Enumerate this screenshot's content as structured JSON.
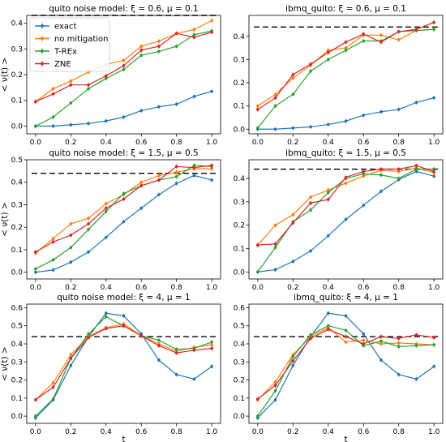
{
  "colors": {
    "exact": "#1f77b4",
    "no_mitigation": "#ff7f0e",
    "trex": "#2ca02c",
    "zne": "#d62728",
    "reference_line": "#000000",
    "axes": "#000000"
  },
  "chart_data": [
    {
      "type": "line",
      "title": "quito noise model: ξ = 0.6, μ = 0.1",
      "xlabel": "",
      "ylabel": "< ν(t) >",
      "xlim": [
        -0.05,
        1.05
      ],
      "ylim": [
        -0.03,
        0.43
      ],
      "xticks": [
        0.0,
        0.2,
        0.4,
        0.6,
        0.8,
        1.0
      ],
      "yticks": [
        0.0,
        0.1,
        0.2,
        0.3,
        0.4
      ],
      "reference_line": 0.43,
      "legend": {
        "position": "upper-left",
        "entries": [
          "exact",
          "no mitigation",
          "T-REx",
          "ZNE"
        ]
      },
      "x": [
        0.0,
        0.1,
        0.2,
        0.3,
        0.4,
        0.5,
        0.6,
        0.7,
        0.8,
        0.9,
        1.0
      ],
      "series": [
        {
          "name": "exact",
          "values": [
            0.0,
            0.0,
            0.005,
            0.01,
            0.02,
            0.035,
            0.06,
            0.075,
            0.085,
            0.115,
            0.135
          ]
        },
        {
          "name": "no mitigation",
          "values": [
            0.095,
            0.145,
            0.175,
            0.21,
            0.24,
            0.255,
            0.31,
            0.33,
            0.36,
            0.375,
            0.41
          ]
        },
        {
          "name": "T-REx",
          "values": [
            0.0,
            0.035,
            0.09,
            0.145,
            0.185,
            0.22,
            0.275,
            0.29,
            0.31,
            0.355,
            0.37
          ]
        },
        {
          "name": "ZNE",
          "values": [
            0.095,
            0.125,
            0.16,
            0.16,
            0.195,
            0.235,
            0.295,
            0.31,
            0.36,
            0.345,
            0.365
          ]
        }
      ]
    },
    {
      "type": "line",
      "title": "ibmq_quito: ξ = 0.6, μ = 0.1",
      "xlabel": "",
      "ylabel": "",
      "xlim": [
        -0.05,
        1.05
      ],
      "ylim": [
        -0.02,
        0.49
      ],
      "xticks": [
        0.0,
        0.2,
        0.4,
        0.6,
        0.8,
        1.0
      ],
      "yticks": [
        0.0,
        0.1,
        0.2,
        0.3,
        0.4
      ],
      "reference_line": 0.44,
      "x": [
        0.0,
        0.1,
        0.2,
        0.3,
        0.4,
        0.5,
        0.6,
        0.7,
        0.8,
        0.9,
        1.0
      ],
      "series": [
        {
          "name": "exact",
          "values": [
            0.0,
            0.0,
            0.005,
            0.01,
            0.02,
            0.035,
            0.06,
            0.075,
            0.085,
            0.115,
            0.135
          ]
        },
        {
          "name": "no mitigation",
          "values": [
            0.1,
            0.15,
            0.22,
            0.275,
            0.34,
            0.35,
            0.405,
            0.405,
            0.385,
            0.425,
            0.43
          ]
        },
        {
          "name": "T-REx",
          "values": [
            0.005,
            0.1,
            0.15,
            0.25,
            0.3,
            0.34,
            0.38,
            0.38,
            0.42,
            0.425,
            0.43
          ]
        },
        {
          "name": "ZNE",
          "values": [
            0.085,
            0.135,
            0.235,
            0.28,
            0.33,
            0.375,
            0.41,
            0.375,
            0.42,
            0.43,
            0.46
          ]
        }
      ]
    },
    {
      "type": "line",
      "title": "quito noise model: ξ = 1.5, μ = 0.5",
      "xlabel": "",
      "ylabel": "< ν(t) >",
      "xlim": [
        -0.05,
        1.05
      ],
      "ylim": [
        -0.03,
        0.5
      ],
      "xticks": [
        0.0,
        0.2,
        0.4,
        0.6,
        0.8,
        1.0
      ],
      "yticks": [
        0.0,
        0.1,
        0.2,
        0.3,
        0.4,
        0.5
      ],
      "reference_line": 0.44,
      "x": [
        0.0,
        0.1,
        0.2,
        0.3,
        0.4,
        0.5,
        0.6,
        0.7,
        0.8,
        0.9,
        1.0
      ],
      "series": [
        {
          "name": "exact",
          "values": [
            0.0,
            0.01,
            0.045,
            0.09,
            0.155,
            0.225,
            0.285,
            0.345,
            0.395,
            0.43,
            0.41
          ]
        },
        {
          "name": "no mitigation",
          "values": [
            0.085,
            0.15,
            0.215,
            0.24,
            0.305,
            0.345,
            0.4,
            0.43,
            0.445,
            0.46,
            0.46
          ]
        },
        {
          "name": "T-REx",
          "values": [
            0.015,
            0.055,
            0.11,
            0.19,
            0.27,
            0.35,
            0.385,
            0.41,
            0.425,
            0.475,
            0.47
          ]
        },
        {
          "name": "ZNE",
          "values": [
            0.09,
            0.135,
            0.165,
            0.215,
            0.285,
            0.325,
            0.385,
            0.41,
            0.47,
            0.465,
            0.475
          ]
        }
      ]
    },
    {
      "type": "line",
      "title": "ibmq_quito: ξ = 1.5, μ = 0.5",
      "xlabel": "",
      "ylabel": "",
      "xlim": [
        -0.05,
        1.05
      ],
      "ylim": [
        -0.03,
        0.48
      ],
      "xticks": [
        0.0,
        0.2,
        0.4,
        0.6,
        0.8,
        1.0
      ],
      "yticks": [
        0.0,
        0.1,
        0.2,
        0.3,
        0.4
      ],
      "reference_line": 0.44,
      "x": [
        0.0,
        0.1,
        0.2,
        0.3,
        0.4,
        0.5,
        0.6,
        0.7,
        0.8,
        0.9,
        1.0
      ],
      "series": [
        {
          "name": "exact",
          "values": [
            0.0,
            0.01,
            0.045,
            0.09,
            0.155,
            0.225,
            0.285,
            0.345,
            0.395,
            0.43,
            0.41
          ]
        },
        {
          "name": "no mitigation",
          "values": [
            0.115,
            0.2,
            0.245,
            0.32,
            0.35,
            0.38,
            0.41,
            0.435,
            0.43,
            0.445,
            0.425
          ]
        },
        {
          "name": "T-REx",
          "values": [
            0.0,
            0.105,
            0.215,
            0.265,
            0.34,
            0.4,
            0.42,
            0.415,
            0.4,
            0.44,
            0.44
          ]
        },
        {
          "name": "ZNE",
          "values": [
            0.115,
            0.12,
            0.21,
            0.295,
            0.31,
            0.405,
            0.43,
            0.44,
            0.44,
            0.455,
            0.43
          ]
        }
      ]
    },
    {
      "type": "line",
      "title": "quito noise model: ξ = 4, μ = 1",
      "xlabel": "t",
      "ylabel": "< ν(t) >",
      "xlim": [
        -0.05,
        1.05
      ],
      "ylim": [
        -0.04,
        0.62
      ],
      "xticks": [
        0.0,
        0.2,
        0.4,
        0.6,
        0.8,
        1.0
      ],
      "yticks": [
        0.0,
        0.1,
        0.2,
        0.3,
        0.4,
        0.5,
        0.6
      ],
      "reference_line": 0.44,
      "x": [
        0.0,
        0.1,
        0.2,
        0.3,
        0.4,
        0.5,
        0.6,
        0.7,
        0.8,
        0.9,
        1.0
      ],
      "series": [
        {
          "name": "exact",
          "values": [
            -0.01,
            0.09,
            0.28,
            0.44,
            0.57,
            0.555,
            0.455,
            0.31,
            0.23,
            0.205,
            0.275
          ]
        },
        {
          "name": "no mitigation",
          "values": [
            0.09,
            0.185,
            0.34,
            0.44,
            0.49,
            0.51,
            0.445,
            0.4,
            0.36,
            0.38,
            0.395
          ]
        },
        {
          "name": "T-REx",
          "values": [
            0.0,
            0.095,
            0.32,
            0.455,
            0.55,
            0.5,
            0.445,
            0.42,
            0.37,
            0.375,
            0.41
          ]
        },
        {
          "name": "ZNE",
          "values": [
            0.09,
            0.16,
            0.32,
            0.435,
            0.485,
            0.5,
            0.445,
            0.39,
            0.35,
            0.365,
            0.375
          ]
        }
      ]
    },
    {
      "type": "line",
      "title": "ibmq_quito: ξ = 4, μ = 1",
      "xlabel": "t",
      "ylabel": "",
      "xlim": [
        -0.05,
        1.05
      ],
      "ylim": [
        -0.04,
        0.62
      ],
      "xticks": [
        0.0,
        0.2,
        0.4,
        0.6,
        0.8,
        1.0
      ],
      "yticks": [
        0.0,
        0.1,
        0.2,
        0.3,
        0.4,
        0.5,
        0.6
      ],
      "reference_line": 0.44,
      "x": [
        0.0,
        0.1,
        0.2,
        0.3,
        0.4,
        0.5,
        0.6,
        0.7,
        0.8,
        0.9,
        1.0
      ],
      "series": [
        {
          "name": "exact",
          "values": [
            -0.01,
            0.09,
            0.28,
            0.44,
            0.57,
            0.555,
            0.455,
            0.31,
            0.23,
            0.205,
            0.275
          ]
        },
        {
          "name": "no mitigation",
          "values": [
            0.09,
            0.19,
            0.34,
            0.44,
            0.49,
            0.41,
            0.42,
            0.4,
            0.405,
            0.4,
            0.395
          ]
        },
        {
          "name": "T-REx",
          "values": [
            0.0,
            0.14,
            0.33,
            0.45,
            0.5,
            0.475,
            0.39,
            0.415,
            0.385,
            0.39,
            0.395
          ]
        },
        {
          "name": "ZNE",
          "values": [
            0.095,
            0.17,
            0.305,
            0.43,
            0.48,
            0.44,
            0.4,
            0.44,
            0.43,
            0.45,
            0.435
          ]
        }
      ]
    }
  ]
}
